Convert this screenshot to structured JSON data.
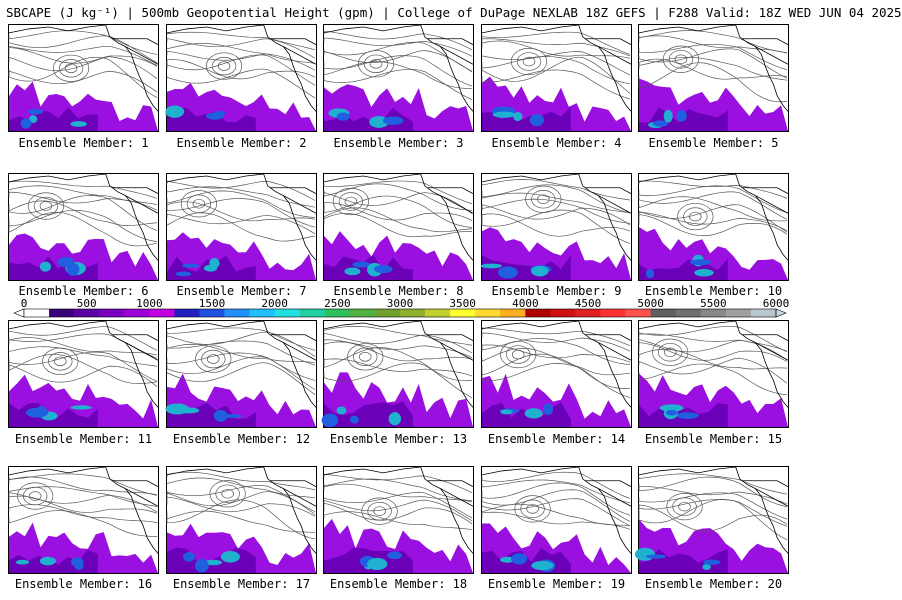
{
  "title": "SBCAPE (J kg⁻¹) | 500mb Geopotential Height (gpm) | College of DuPage NEXLAB 18Z GEFS | F288 Valid: 18Z WED JUN 04 2025",
  "members": [
    "Ensemble Member: 1",
    "Ensemble Member: 2",
    "Ensemble Member: 3",
    "Ensemble Member: 4",
    "Ensemble Member: 5",
    "Ensemble Member: 6",
    "Ensemble Member: 7",
    "Ensemble Member: 8",
    "Ensemble Member: 9",
    "Ensemble Member: 10",
    "Ensemble Member: 11",
    "Ensemble Member: 12",
    "Ensemble Member: 13",
    "Ensemble Member: 14",
    "Ensemble Member: 15",
    "Ensemble Member: 16",
    "Ensemble Member: 17",
    "Ensemble Member: 18",
    "Ensemble Member: 19",
    "Ensemble Member: 20"
  ],
  "colorbar": {
    "labels": [
      "0",
      "500",
      "1000",
      "1500",
      "2000",
      "2500",
      "3000",
      "3500",
      "4000",
      "4500",
      "5000",
      "5500",
      "6000"
    ],
    "colors": [
      "#ffffff",
      "#3a007a",
      "#5a00a0",
      "#7a00c0",
      "#9a00d8",
      "#c000e0",
      "#2020c0",
      "#2050e0",
      "#2090ff",
      "#20c0ff",
      "#20e0e0",
      "#20d0a0",
      "#30c060",
      "#50b040",
      "#70a030",
      "#90b030",
      "#c0d030",
      "#ffff30",
      "#ffd830",
      "#ffb020",
      "#b00000",
      "#d01010",
      "#e02020",
      "#ff3030",
      "#ff5050",
      "#606060",
      "#707070",
      "#888888",
      "#a0a0a0",
      "#b8c8d0"
    ]
  }
}
